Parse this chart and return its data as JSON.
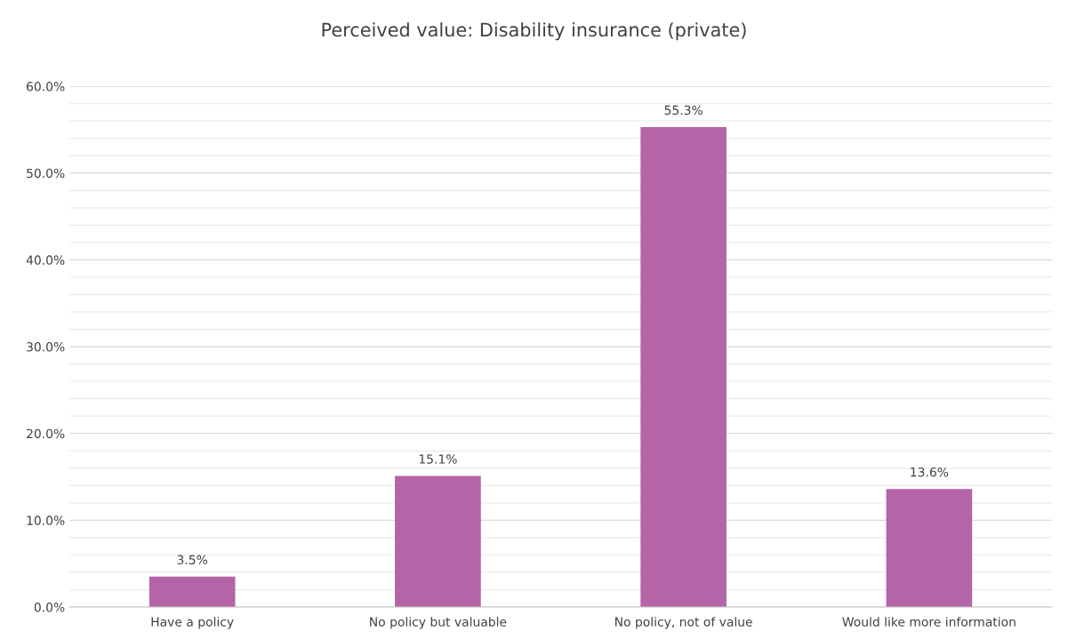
{
  "chart_data": {
    "type": "bar",
    "title": "Perceived value: Disability insurance (private)",
    "categories": [
      "Have a policy",
      "No policy but valuable",
      "No policy, not of value",
      "Would like more information"
    ],
    "values": [
      3.5,
      15.1,
      55.3,
      13.6
    ],
    "value_labels": [
      "3.5%",
      "15.1%",
      "55.3%",
      "13.6%"
    ],
    "color": "#b565a7",
    "ylim": [
      0,
      60
    ],
    "yticks": [
      {
        "value": 0,
        "label": "0.0%"
      },
      {
        "value": 2,
        "label": null
      },
      {
        "value": 4,
        "label": null
      },
      {
        "value": 6,
        "label": null
      },
      {
        "value": 8,
        "label": null
      },
      {
        "value": 10,
        "label": "10.0%"
      },
      {
        "value": 12,
        "label": null
      },
      {
        "value": 14,
        "label": null
      },
      {
        "value": 16,
        "label": null
      },
      {
        "value": 18,
        "label": null
      },
      {
        "value": 20,
        "label": "20.0%"
      },
      {
        "value": 22,
        "label": null
      },
      {
        "value": 24,
        "label": null
      },
      {
        "value": 26,
        "label": null
      },
      {
        "value": 28,
        "label": null
      },
      {
        "value": 30,
        "label": "30.0%"
      },
      {
        "value": 32,
        "label": null
      },
      {
        "value": 34,
        "label": null
      },
      {
        "value": 36,
        "label": null
      },
      {
        "value": 38,
        "label": null
      },
      {
        "value": 40,
        "label": "40.0%"
      },
      {
        "value": 42,
        "label": null
      },
      {
        "value": 44,
        "label": null
      },
      {
        "value": 46,
        "label": null
      },
      {
        "value": 48,
        "label": null
      },
      {
        "value": 50,
        "label": "50.0%"
      },
      {
        "value": 52,
        "label": null
      },
      {
        "value": 54,
        "label": null
      },
      {
        "value": 56,
        "label": null
      },
      {
        "value": 58,
        "label": null
      },
      {
        "value": 60,
        "label": "60.0%"
      }
    ],
    "grid": "y",
    "legend": false
  }
}
